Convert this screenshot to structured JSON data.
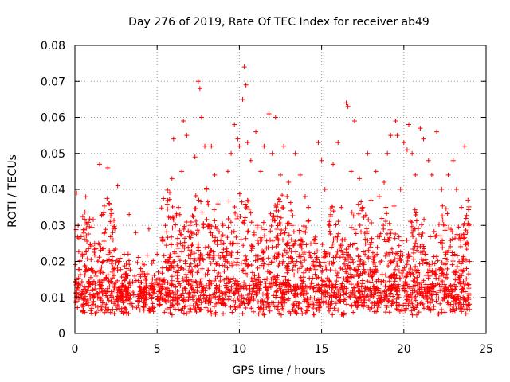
{
  "chart_data": {
    "type": "scatter",
    "title": "Day 276 of 2019, Rate Of TEC Index for receiver ab49",
    "xlabel": "GPS time / hours",
    "ylabel": "ROTI / TECUs",
    "xlim": [
      0,
      25
    ],
    "ylim": [
      0,
      0.08
    ],
    "x_ticks": [
      "0",
      "5",
      "10",
      "15",
      "20",
      "25"
    ],
    "y_ticks": [
      "0",
      "0.01",
      "0.02",
      "0.03",
      "0.04",
      "0.05",
      "0.06",
      "0.07",
      "0.08"
    ],
    "grid": true,
    "marker": "plus",
    "color": "#ff0000",
    "series": [
      {
        "x": [
          0.1,
          0.2,
          0.3,
          0.5,
          0.8,
          1.0,
          1.2,
          1.5,
          1.7,
          2.0,
          2.1,
          2.3,
          2.5,
          2.6,
          2.7,
          2.9,
          3.0,
          3.3,
          3.7,
          4.0,
          4.3,
          4.5,
          4.7,
          5.0,
          5.2,
          5.5,
          5.7,
          5.9,
          6.0,
          6.3,
          6.5,
          6.6,
          6.8,
          7.0,
          7.3,
          7.5,
          7.6,
          7.7,
          7.9,
          8.0,
          8.3,
          8.5,
          8.7,
          9.0,
          9.3,
          9.5,
          9.7,
          9.9,
          10.0,
          10.2,
          10.3,
          10.4,
          10.5,
          10.7,
          11.0,
          11.3,
          11.5,
          11.8,
          12.0,
          12.2,
          12.5,
          12.7,
          12.9,
          13.0,
          13.2,
          13.4,
          13.5,
          13.7,
          14.0,
          14.2,
          14.5,
          14.8,
          15.0,
          15.2,
          15.5,
          15.7,
          16.0,
          16.2,
          16.5,
          16.6,
          16.8,
          17.0,
          17.3,
          17.5,
          17.8,
          18.0,
          18.3,
          18.5,
          18.8,
          19.0,
          19.2,
          19.5,
          19.6,
          19.8,
          20.0,
          20.2,
          20.3,
          20.5,
          20.7,
          21.0,
          21.2,
          21.5,
          21.7,
          22.0,
          22.3,
          22.5,
          22.7,
          23.0,
          23.2,
          23.5,
          23.7,
          23.9,
          24.0
        ],
        "y": [
          0.039,
          0.03,
          0.012,
          0.008,
          0.014,
          0.018,
          0.025,
          0.047,
          0.033,
          0.046,
          0.036,
          0.028,
          0.012,
          0.041,
          0.02,
          0.01,
          0.022,
          0.033,
          0.028,
          0.018,
          0.008,
          0.029,
          0.012,
          0.022,
          0.01,
          0.03,
          0.02,
          0.043,
          0.054,
          0.035,
          0.045,
          0.059,
          0.055,
          0.03,
          0.049,
          0.07,
          0.068,
          0.06,
          0.052,
          0.04,
          0.052,
          0.044,
          0.036,
          0.03,
          0.045,
          0.05,
          0.058,
          0.054,
          0.052,
          0.065,
          0.074,
          0.069,
          0.053,
          0.048,
          0.056,
          0.045,
          0.052,
          0.061,
          0.05,
          0.06,
          0.044,
          0.052,
          0.038,
          0.042,
          0.03,
          0.05,
          0.02,
          0.044,
          0.038,
          0.035,
          0.02,
          0.053,
          0.048,
          0.04,
          0.03,
          0.047,
          0.053,
          0.035,
          0.064,
          0.063,
          0.045,
          0.059,
          0.043,
          0.035,
          0.05,
          0.037,
          0.045,
          0.038,
          0.042,
          0.05,
          0.055,
          0.059,
          0.055,
          0.04,
          0.053,
          0.051,
          0.058,
          0.05,
          0.044,
          0.057,
          0.054,
          0.048,
          0.044,
          0.056,
          0.04,
          0.03,
          0.044,
          0.048,
          0.04,
          0.035,
          0.052,
          0.037,
          0.02
        ]
      }
    ]
  }
}
